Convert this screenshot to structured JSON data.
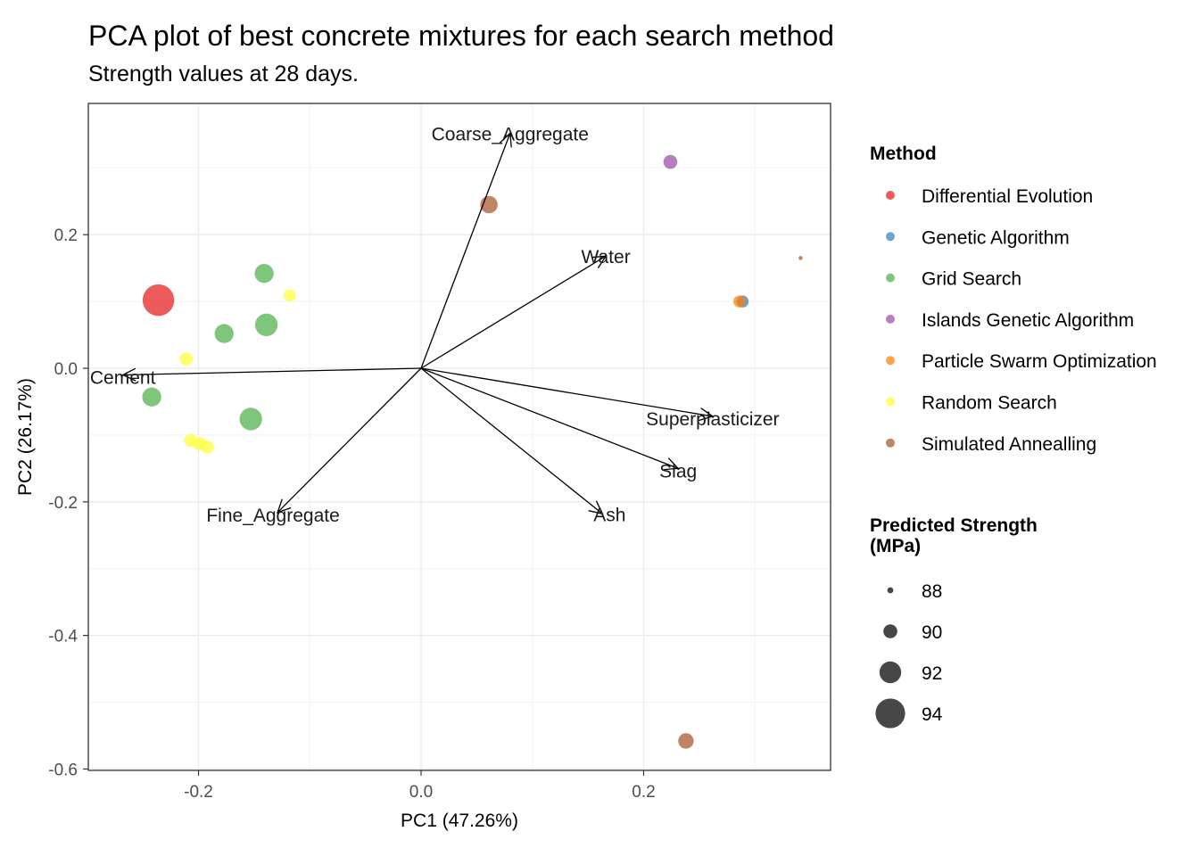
{
  "title": "PCA plot of best concrete mixtures for each search method",
  "subtitle": "Strength values at 28 days.",
  "chart_data": {
    "type": "scatter",
    "title": "PCA plot of best concrete mixtures for each search method",
    "subtitle": "Strength values at 28 days.",
    "xlabel": "PC1 (47.26%)",
    "ylabel": "PC2 (26.17%)",
    "xlim": [
      -0.3,
      0.37
    ],
    "ylim": [
      -0.6,
      0.4
    ],
    "x_ticks": [
      -0.2,
      0.0,
      0.2
    ],
    "x_tick_labels": [
      "-0.2",
      "0.0",
      "0.2"
    ],
    "y_ticks": [
      -0.6,
      -0.4,
      -0.2,
      0.0,
      0.2
    ],
    "y_tick_labels": [
      "-0.6",
      "-0.4",
      "-0.2",
      "0.0",
      "0.2"
    ],
    "grid": true,
    "legend_position": "right",
    "color_legend": {
      "title": "Method",
      "entries": [
        {
          "label": "Differential Evolution",
          "color": "#E41A1C"
        },
        {
          "label": "Genetic Algorithm",
          "color": "#377EB8"
        },
        {
          "label": "Grid Search",
          "color": "#4DAF4A"
        },
        {
          "label": "Islands Genetic Algorithm",
          "color": "#984EA3"
        },
        {
          "label": "Particle Swarm Optimization",
          "color": "#FF7F00"
        },
        {
          "label": "Random Search",
          "color": "#FFFF33"
        },
        {
          "label": "Simulated Annealling",
          "color": "#A65628"
        }
      ]
    },
    "size_legend": {
      "title_lines": [
        "Predicted Strength",
        "(MPa)"
      ],
      "entries": [
        {
          "label": "88",
          "value": 88
        },
        {
          "label": "90",
          "value": 90
        },
        {
          "label": "92",
          "value": 92
        },
        {
          "label": "94",
          "value": 94
        }
      ]
    },
    "points": [
      {
        "method": "Differential Evolution",
        "x": -0.236,
        "y": 0.102,
        "strength": 94.5
      },
      {
        "method": "Genetic Algorithm",
        "x": 0.289,
        "y": 0.1,
        "strength": 89.5
      },
      {
        "method": "Grid Search",
        "x": -0.141,
        "y": 0.142,
        "strength": 91.3
      },
      {
        "method": "Grid Search",
        "x": -0.139,
        "y": 0.065,
        "strength": 92.2
      },
      {
        "method": "Grid Search",
        "x": -0.177,
        "y": 0.052,
        "strength": 91.3
      },
      {
        "method": "Grid Search",
        "x": -0.242,
        "y": -0.043,
        "strength": 91.3
      },
      {
        "method": "Grid Search",
        "x": -0.153,
        "y": -0.076,
        "strength": 92.2
      },
      {
        "method": "Islands Genetic Algorithm",
        "x": 0.224,
        "y": 0.309,
        "strength": 90.0
      },
      {
        "method": "Particle Swarm Optimization",
        "x": 0.286,
        "y": 0.1,
        "strength": 89.5
      },
      {
        "method": "Random Search",
        "x": -0.118,
        "y": 0.109,
        "strength": 89.5
      },
      {
        "method": "Random Search",
        "x": -0.211,
        "y": 0.014,
        "strength": 89.8
      },
      {
        "method": "Random Search",
        "x": -0.207,
        "y": -0.108,
        "strength": 89.8
      },
      {
        "method": "Random Search",
        "x": -0.199,
        "y": -0.113,
        "strength": 89.8
      },
      {
        "method": "Random Search",
        "x": -0.192,
        "y": -0.118,
        "strength": 89.8
      },
      {
        "method": "Simulated Annealling",
        "x": 0.061,
        "y": 0.245,
        "strength": 90.9
      },
      {
        "method": "Simulated Annealling",
        "x": 0.341,
        "y": 0.165,
        "strength": 87.5
      },
      {
        "method": "Simulated Annealling",
        "x": 0.238,
        "y": -0.558,
        "strength": 90.4
      }
    ],
    "loadings": [
      {
        "name": "Coarse_Aggregate",
        "x": 0.08,
        "y": 0.352
      },
      {
        "name": "Water",
        "x": 0.166,
        "y": 0.168
      },
      {
        "name": "Cement",
        "x": -0.268,
        "y": -0.01
      },
      {
        "name": "Superplasticizer",
        "x": 0.262,
        "y": -0.072
      },
      {
        "name": "Slag",
        "x": 0.231,
        "y": -0.15
      },
      {
        "name": "Ash",
        "x": 0.163,
        "y": -0.218
      },
      {
        "name": "Fine_Aggregate",
        "x": -0.129,
        "y": -0.216
      }
    ]
  }
}
